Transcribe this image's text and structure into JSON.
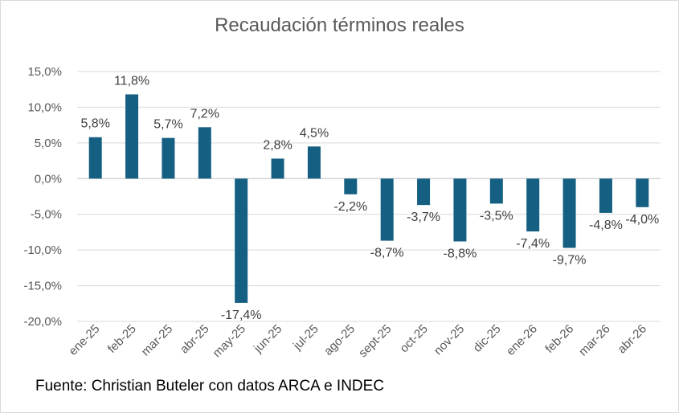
{
  "chart_data": {
    "type": "bar",
    "title": "Recaudación términos reales",
    "xlabel": "",
    "ylabel": "",
    "categories": [
      "ene-25",
      "feb-25",
      "mar-25",
      "abr-25",
      "may-25",
      "jun-25",
      "jul-25",
      "ago-25",
      "sept-25",
      "oct-25",
      "nov-25",
      "dic-25",
      "ene-26",
      "feb-26",
      "mar-26",
      "abr-26"
    ],
    "values": [
      5.8,
      11.8,
      5.7,
      7.2,
      -17.4,
      2.8,
      4.5,
      -2.2,
      -8.7,
      -3.7,
      -8.8,
      -3.5,
      -7.4,
      -9.7,
      -4.8,
      -4.0
    ],
    "value_labels": [
      "5,8%",
      "11,8%",
      "5,7%",
      "7,2%",
      "-17,4%",
      "2,8%",
      "4,5%",
      "-2,2%",
      "-8,7%",
      "-3,7%",
      "-8,8%",
      "-3,5%",
      "-7,4%",
      "-9,7%",
      "-4,8%",
      "-4,0%"
    ],
    "y_ticks": [
      15,
      10,
      5,
      0,
      -5,
      -10,
      -15,
      -20
    ],
    "y_tick_labels": [
      "15,0%",
      "10,0%",
      "5,0%",
      "0,0%",
      "-5,0%",
      "-10,0%",
      "-15,0%",
      "-20,0%"
    ],
    "ylim": [
      -20,
      15
    ],
    "grid": true,
    "legend": "none",
    "bar_color": "#156082"
  },
  "footer": {
    "source": "Fuente: Christian Buteler con datos ARCA e INDEC"
  }
}
